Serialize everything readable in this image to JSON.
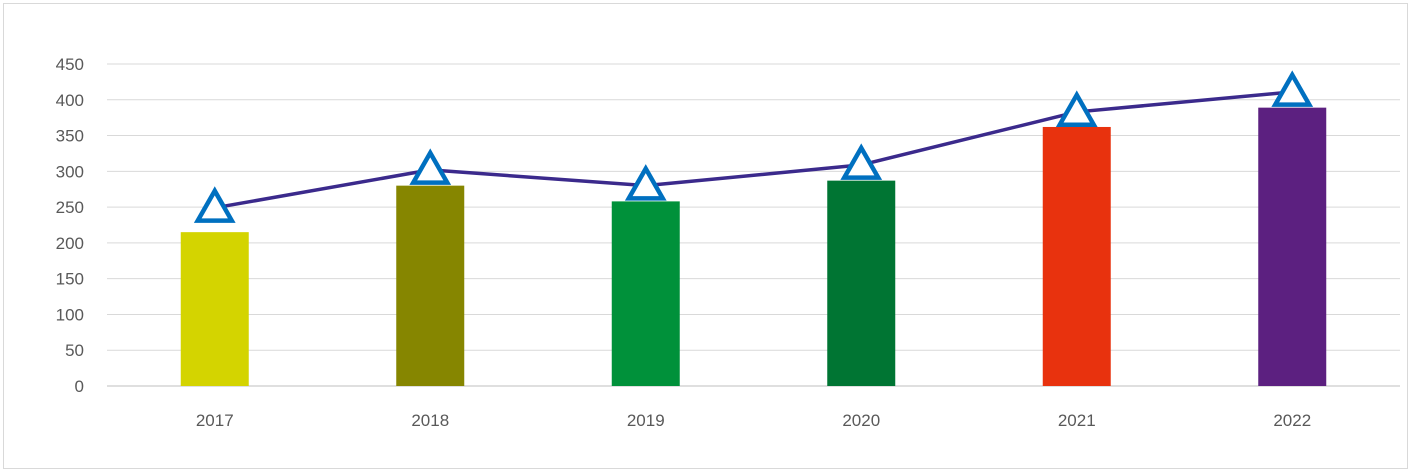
{
  "chart_data": {
    "type": "bar",
    "categories": [
      "2017",
      "2018",
      "2019",
      "2020",
      "2021",
      "2022"
    ],
    "series": [
      {
        "type": "bar",
        "values": [
          215,
          280,
          258,
          287,
          362,
          389
        ],
        "colors": [
          "#d4d400",
          "#868600",
          "#00913a",
          "#007533",
          "#e8320e",
          "#5c2080"
        ]
      },
      {
        "type": "line",
        "values": [
          249,
          302,
          280,
          309,
          383,
          411
        ],
        "line_color": "#3b2a8c",
        "marker": "triangle",
        "marker_fill": "#ffffff",
        "marker_stroke": "#0070c0"
      }
    ],
    "y_ticks": [
      "0",
      "50",
      "100",
      "150",
      "200",
      "250",
      "300",
      "350",
      "400",
      "450"
    ],
    "ylim": [
      0,
      450
    ],
    "grid": true,
    "legend": "none"
  }
}
